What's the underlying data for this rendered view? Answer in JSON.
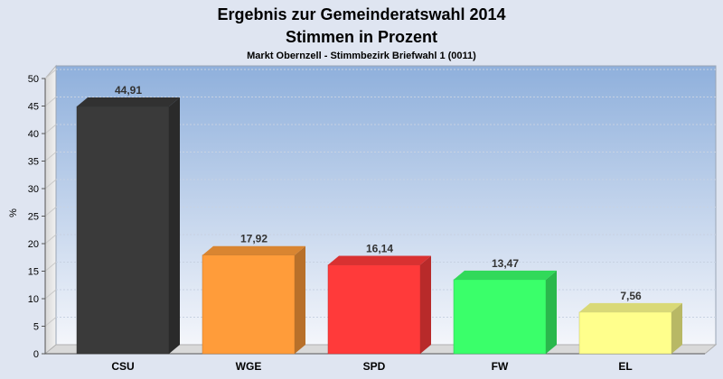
{
  "chart_data": {
    "type": "bar",
    "title": "Ergebnis zur Gemeinderatswahl 2014",
    "subtitle": "Stimmen in Prozent",
    "caption": "Markt Obernzell - Stimmbezirk Briefwahl 1 (0011)",
    "ylabel": "%",
    "xlabel": "",
    "ylim": [
      0,
      50
    ],
    "yticks": [
      "0",
      "5",
      "10",
      "15",
      "20",
      "25",
      "30",
      "35",
      "40",
      "45",
      "50"
    ],
    "categories": [
      "CSU",
      "WGE",
      "SPD",
      "FW",
      "EL"
    ],
    "values": [
      44.91,
      17.92,
      16.14,
      13.47,
      7.56
    ],
    "value_labels": [
      "44,91",
      "17,92",
      "16,14",
      "13,47",
      "7,56"
    ],
    "colors": [
      "#3a3a3a",
      "#ff9c3a",
      "#ff3a3a",
      "#3aff6a",
      "#ffff8c"
    ],
    "grid": true,
    "legend": "none"
  }
}
